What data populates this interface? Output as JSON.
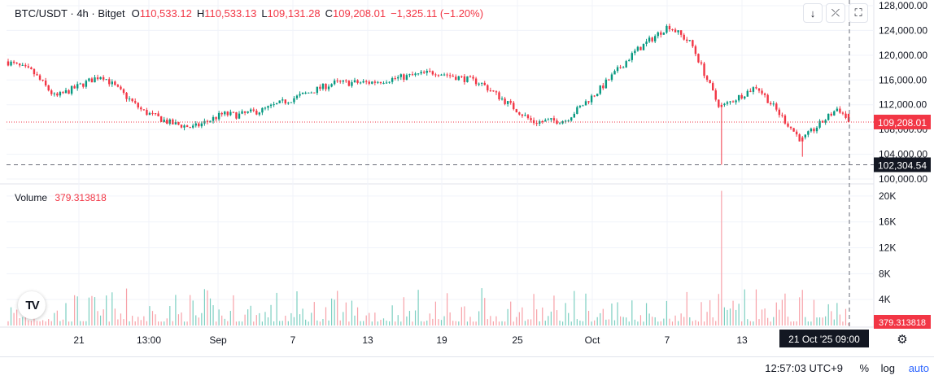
{
  "header": {
    "symbol": "BTC/USDT · 4h · Bitget",
    "o_label": "O",
    "o_value": "110,533.12",
    "h_label": "H",
    "h_value": "110,533.13",
    "l_label": "L",
    "l_value": "109,131.28",
    "c_label": "C",
    "c_value": "109,208.01",
    "change": "−1,325.11 (−1.20%)"
  },
  "toolbar": {
    "down_icon": "arrow-down-icon",
    "collapse_icon": "collapse-icon",
    "fullscreen_icon": "fullscreen-icon"
  },
  "volume": {
    "label": "Volume",
    "value": "379.313818"
  },
  "price_axis": {
    "ticks": [
      "128,000.00",
      "124,000.00",
      "120,000.00",
      "116,000.00",
      "112,000.00",
      "108,000.00",
      "104,000.00",
      "100,000.00"
    ],
    "tick_values": [
      128000,
      124000,
      120000,
      116000,
      112000,
      108000,
      104000,
      100000
    ],
    "last_price_label": "109,208.01",
    "last_price": 109208.01,
    "crosshair_label": "102,304.54",
    "crosshair_price": 102304.54
  },
  "volume_axis": {
    "ticks": [
      "20K",
      "16K",
      "12K",
      "8K",
      "4K"
    ],
    "tick_values": [
      20000,
      16000,
      12000,
      8000,
      4000
    ],
    "last_label": "379.313818"
  },
  "time_axis": {
    "labels": [
      "21",
      "13:00",
      "Sep",
      "7",
      "13",
      "19",
      "25",
      "Oct",
      "7",
      "13"
    ],
    "crosshair_label": "21 Oct '25   09:00"
  },
  "status": {
    "clock": "12:57:03 UTC+9",
    "percent": "%",
    "log": "log",
    "auto": "auto"
  },
  "colors": {
    "up": "#089981",
    "down": "#f23645",
    "text": "#131722",
    "grid": "#f0f3fa",
    "auto": "#2962ff"
  },
  "chart_data": {
    "type": "candlestick",
    "title": "BTC/USDT · 4h · Bitget",
    "ylim": [
      100000,
      128000
    ],
    "volume_ylim": [
      0,
      22000
    ],
    "anchors": [
      {
        "t": "Aug 16",
        "price": 119000
      },
      {
        "t": "Aug 18",
        "price": 117300
      },
      {
        "t": "Aug 20",
        "price": 113200
      },
      {
        "t": "Aug 23",
        "price": 116800
      },
      {
        "t": "Aug 26",
        "price": 111000
      },
      {
        "t": "Aug 29",
        "price": 109000
      },
      {
        "t": "Sep 1",
        "price": 108300
      },
      {
        "t": "Sep 3",
        "price": 110500
      },
      {
        "t": "Sep 5",
        "price": 110300
      },
      {
        "t": "Sep 7",
        "price": 111100
      },
      {
        "t": "Sep 12",
        "price": 115500
      },
      {
        "t": "Sep 15",
        "price": 115600
      },
      {
        "t": "Sep 18",
        "price": 117300
      },
      {
        "t": "Sep 21",
        "price": 115600
      },
      {
        "t": "Sep 25",
        "price": 109200
      },
      {
        "t": "Sep 27",
        "price": 109500
      },
      {
        "t": "Sep 30",
        "price": 114200
      },
      {
        "t": "Oct 3",
        "price": 120500
      },
      {
        "t": "Oct 6",
        "price": 124800
      },
      {
        "t": "Oct 8",
        "price": 121800
      },
      {
        "t": "Oct 10",
        "price": 112200
      },
      {
        "t": "Oct 11",
        "price": 111700
      },
      {
        "t": "Oct 13",
        "price": 115000
      },
      {
        "t": "Oct 17",
        "price": 106200
      },
      {
        "t": "Oct 20",
        "price": 111500
      },
      {
        "t": "Oct 21",
        "price": 109200
      }
    ],
    "events": [
      {
        "t": "Oct 10",
        "low": 102300,
        "volume": 20800
      },
      {
        "t": "Oct 17",
        "low": 103600,
        "volume": 5500
      }
    ]
  }
}
